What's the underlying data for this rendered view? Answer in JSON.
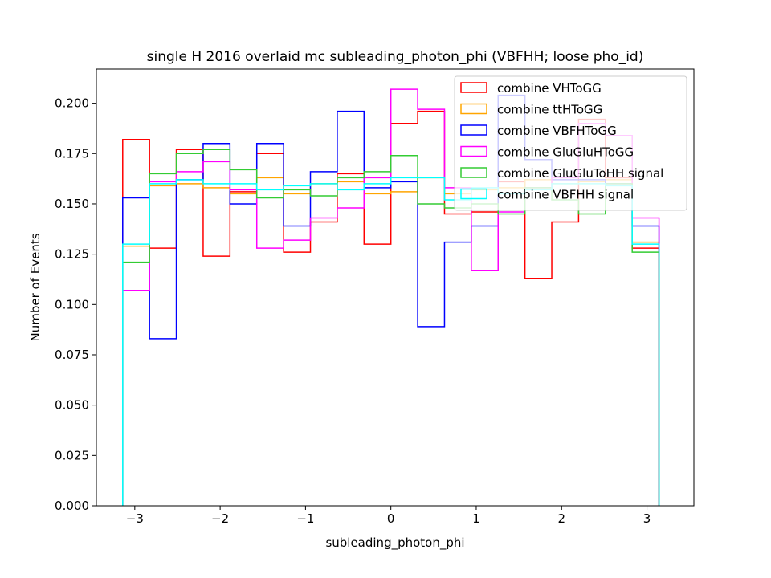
{
  "chart_data": {
    "type": "histogram",
    "title": "single H 2016 overlaid mc subleading_photon_phi (VBFHH; loose pho_id)",
    "xlabel": "subleading_photon_phi",
    "ylabel": "Number of Events",
    "xlim": [
      -3.45,
      3.55
    ],
    "ylim": [
      0,
      0.217
    ],
    "grid": false,
    "legend_position": "top-right",
    "x_ticks": [
      -3,
      -2,
      -1,
      0,
      1,
      2,
      3
    ],
    "x_tick_labels": [
      "−3",
      "−2",
      "−1",
      "0",
      "1",
      "2",
      "3"
    ],
    "y_ticks": [
      0.0,
      0.025,
      0.05,
      0.075,
      0.1,
      0.125,
      0.15,
      0.175,
      0.2
    ],
    "y_tick_labels": [
      "0.000",
      "0.025",
      "0.050",
      "0.075",
      "0.100",
      "0.125",
      "0.150",
      "0.175",
      "0.200"
    ],
    "bin_edges": [
      -3.1416,
      -2.8274,
      -2.5133,
      -2.1991,
      -1.885,
      -1.5708,
      -1.2566,
      -0.9425,
      -0.6283,
      -0.3142,
      0.0,
      0.3142,
      0.6283,
      0.9425,
      1.2566,
      1.5708,
      1.885,
      2.1991,
      2.5133,
      2.8274,
      3.1416
    ],
    "series": [
      {
        "name": "combine VHToGG",
        "color": "#ff0000",
        "values": [
          0.182,
          0.128,
          0.177,
          0.124,
          0.156,
          0.175,
          0.126,
          0.141,
          0.165,
          0.13,
          0.19,
          0.196,
          0.145,
          0.146,
          0.161,
          0.113,
          0.141,
          0.192,
          0.163,
          0.128
        ]
      },
      {
        "name": "combine ttHToGG",
        "color": "#ffa500",
        "values": [
          0.129,
          0.159,
          0.16,
          0.158,
          0.155,
          0.163,
          0.155,
          0.16,
          0.161,
          0.155,
          0.156,
          0.163,
          0.155,
          0.157,
          0.158,
          0.162,
          0.16,
          0.161,
          0.162,
          0.131
        ]
      },
      {
        "name": "combine VBFHToGG",
        "color": "#0000ff",
        "values": [
          0.153,
          0.083,
          0.162,
          0.18,
          0.15,
          0.18,
          0.139,
          0.166,
          0.196,
          0.158,
          0.161,
          0.089,
          0.131,
          0.139,
          0.204,
          0.172,
          0.162,
          0.162,
          0.16,
          0.139
        ]
      },
      {
        "name": "combine GluGluHToGG",
        "color": "#ff00ff",
        "values": [
          0.107,
          0.161,
          0.166,
          0.171,
          0.157,
          0.128,
          0.132,
          0.143,
          0.148,
          0.163,
          0.207,
          0.197,
          0.158,
          0.117,
          0.146,
          0.158,
          0.163,
          0.19,
          0.184,
          0.143
        ]
      },
      {
        "name": "combine GluGluToHH signal",
        "color": "#33cc33",
        "values": [
          0.121,
          0.165,
          0.175,
          0.177,
          0.167,
          0.153,
          0.157,
          0.154,
          0.163,
          0.166,
          0.174,
          0.15,
          0.148,
          0.15,
          0.145,
          0.158,
          0.152,
          0.145,
          0.16,
          0.126
        ]
      },
      {
        "name": "combine VBFHH signal",
        "color": "#00ffff",
        "values": [
          0.13,
          0.16,
          0.162,
          0.16,
          0.16,
          0.157,
          0.159,
          0.16,
          0.157,
          0.16,
          0.163,
          0.163,
          0.152,
          0.158,
          0.155,
          0.157,
          0.16,
          0.16,
          0.159,
          0.13
        ]
      }
    ]
  }
}
